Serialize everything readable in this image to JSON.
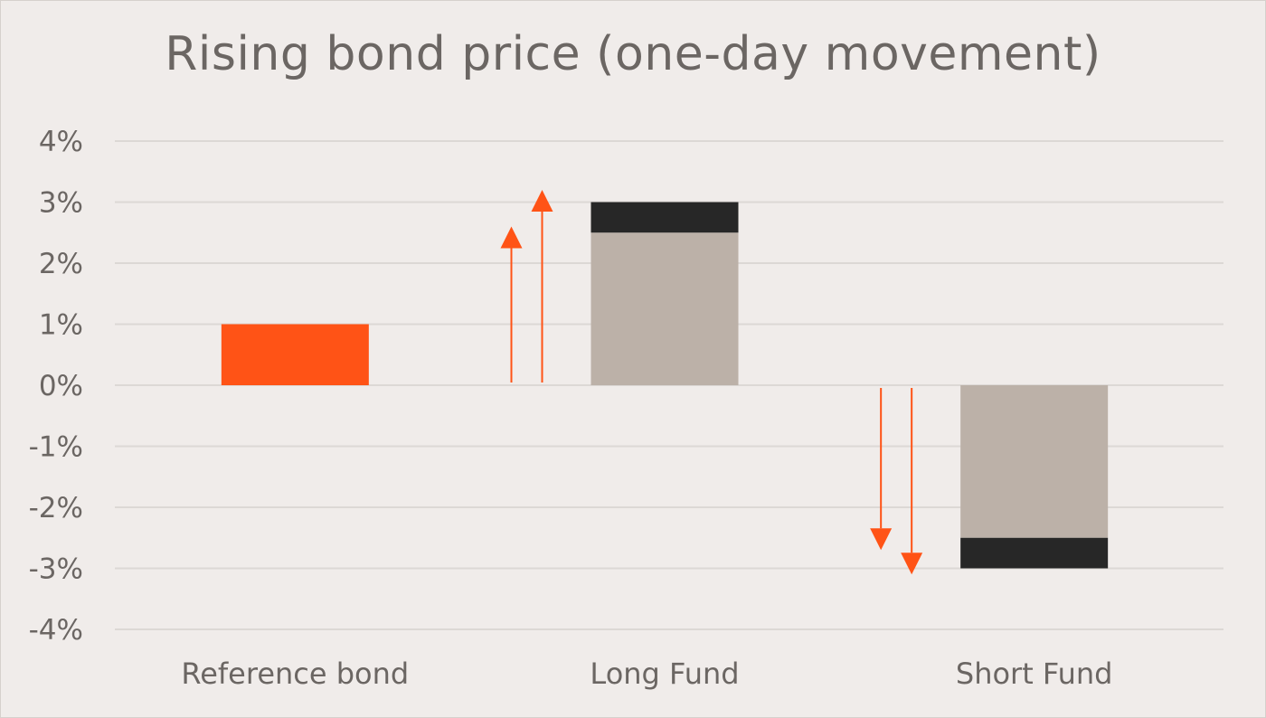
{
  "chart_data": {
    "type": "bar",
    "title": "Rising bond price (one-day movement)",
    "categories": [
      "Reference bond",
      "Long Fund",
      "Short Fund"
    ],
    "series": [
      {
        "values": [
          1,
          2.5,
          -2.5
        ],
        "color": "#ff5316",
        "alt_color": "#bcb1a8"
      },
      {
        "values": [
          0,
          0.5,
          -0.5
        ],
        "color": "#272727"
      }
    ],
    "ylim": [
      -4,
      4
    ],
    "yticks": [
      4,
      3,
      2,
      1,
      0,
      -1,
      -2,
      -3,
      -4
    ],
    "ytick_labels": [
      "4%",
      "3%",
      "2%",
      "1%",
      "0%",
      "-1%",
      "-2%",
      "-3%",
      "-4%"
    ],
    "arrows": [
      {
        "category": "Long Fund",
        "from": 0,
        "to": 2.6,
        "side": "left-1"
      },
      {
        "category": "Long Fund",
        "from": 0,
        "to": 3.2,
        "side": "left-2"
      },
      {
        "category": "Short Fund",
        "from": 0,
        "to": -2.7,
        "side": "left-1"
      },
      {
        "category": "Short Fund",
        "from": 0,
        "to": -3.1,
        "side": "left-2"
      }
    ],
    "grid": true,
    "colors": {
      "accent": "#ff5316",
      "bar_base": "#bcb1a8",
      "bar_top": "#272727",
      "grid": "#dcd8d5",
      "text": "#6b6663"
    }
  }
}
